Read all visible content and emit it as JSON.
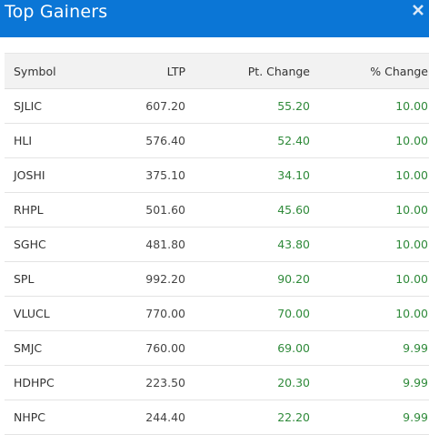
{
  "window": {
    "title": "Top Gainers",
    "close_icon": "close-icon",
    "header_color": "#0b76d6"
  },
  "table": {
    "columns": [
      "Symbol",
      "LTP",
      "Pt. Change",
      "% Change"
    ],
    "rows": [
      {
        "symbol": "SJLIC",
        "ltp": "607.20",
        "pt_change": "55.20",
        "pct_change": "10.00"
      },
      {
        "symbol": "HLI",
        "ltp": "576.40",
        "pt_change": "52.40",
        "pct_change": "10.00"
      },
      {
        "symbol": "JOSHI",
        "ltp": "375.10",
        "pt_change": "34.10",
        "pct_change": "10.00"
      },
      {
        "symbol": "RHPL",
        "ltp": "501.60",
        "pt_change": "45.60",
        "pct_change": "10.00"
      },
      {
        "symbol": "SGHC",
        "ltp": "481.80",
        "pt_change": "43.80",
        "pct_change": "10.00"
      },
      {
        "symbol": "SPL",
        "ltp": "992.20",
        "pt_change": "90.20",
        "pct_change": "10.00"
      },
      {
        "symbol": "VLUCL",
        "ltp": "770.00",
        "pt_change": "70.00",
        "pct_change": "10.00"
      },
      {
        "symbol": "SMJC",
        "ltp": "760.00",
        "pt_change": "69.00",
        "pct_change": "9.99"
      },
      {
        "symbol": "HDHPC",
        "ltp": "223.50",
        "pt_change": "20.30",
        "pct_change": "9.99"
      },
      {
        "symbol": "NHPC",
        "ltp": "244.40",
        "pt_change": "22.20",
        "pct_change": "9.99"
      }
    ],
    "positive_color": "#2f8a3a"
  }
}
